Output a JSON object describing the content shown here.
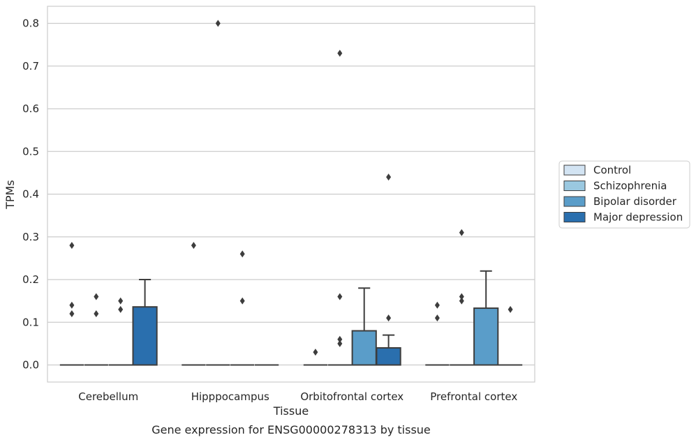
{
  "chart_data": {
    "type": "box",
    "xlabel": "Tissue",
    "ylabel": "TPMs",
    "caption": "Gene expression for ENSG00000278313 by tissue",
    "ylim": [
      -0.04,
      0.84
    ],
    "yticks": [
      "0.0",
      "0.1",
      "0.2",
      "0.3",
      "0.4",
      "0.5",
      "0.6",
      "0.7",
      "0.8"
    ],
    "grid": "horizontal",
    "legend_position": "right",
    "categories": [
      "Cerebellum",
      "Hipppocampus",
      "Orbitofrontal cortex",
      "Prefrontal cortex"
    ],
    "series": [
      {
        "name": "Control",
        "color": "#d3e4f3",
        "boxes": [
          {
            "q1": 0,
            "median": 0,
            "q3": 0,
            "whisker_low": 0,
            "whisker_high": 0,
            "outliers": [
              0.14,
              0.12,
              0.28
            ]
          },
          {
            "q1": 0,
            "median": 0,
            "q3": 0,
            "whisker_low": 0,
            "whisker_high": 0,
            "outliers": [
              0.28
            ]
          },
          {
            "q1": 0,
            "median": 0,
            "q3": 0,
            "whisker_low": 0,
            "whisker_high": 0,
            "outliers": [
              0.03
            ]
          },
          {
            "q1": 0,
            "median": 0,
            "q3": 0,
            "whisker_low": 0,
            "whisker_high": 0,
            "outliers": [
              0.14,
              0.11
            ]
          }
        ]
      },
      {
        "name": "Schizophrenia",
        "color": "#9ac8e0",
        "boxes": [
          {
            "q1": 0,
            "median": 0,
            "q3": 0,
            "whisker_low": 0,
            "whisker_high": 0,
            "outliers": [
              0.16,
              0.12
            ]
          },
          {
            "q1": 0,
            "median": 0,
            "q3": 0,
            "whisker_low": 0,
            "whisker_high": 0,
            "outliers": [
              0.8
            ]
          },
          {
            "q1": 0,
            "median": 0,
            "q3": 0,
            "whisker_low": 0,
            "whisker_high": 0,
            "outliers": [
              0.73,
              0.16,
              0.06,
              0.05
            ]
          },
          {
            "q1": 0,
            "median": 0,
            "q3": 0,
            "whisker_low": 0,
            "whisker_high": 0,
            "outliers": [
              0.31,
              0.16,
              0.15
            ]
          }
        ]
      },
      {
        "name": "Bipolar disorder",
        "color": "#5a9dc9",
        "boxes": [
          {
            "q1": 0,
            "median": 0,
            "q3": 0,
            "whisker_low": 0,
            "whisker_high": 0,
            "outliers": [
              0.15,
              0.13
            ]
          },
          {
            "q1": 0,
            "median": 0,
            "q3": 0,
            "whisker_low": 0,
            "whisker_high": 0,
            "outliers": [
              0.26,
              0.15
            ]
          },
          {
            "q1": 0,
            "median": 0,
            "q3": 0.08,
            "whisker_low": 0,
            "whisker_high": 0.18,
            "outliers": []
          },
          {
            "q1": 0,
            "median": 0,
            "q3": 0.133,
            "whisker_low": 0,
            "whisker_high": 0.22,
            "outliers": []
          }
        ]
      },
      {
        "name": "Major depression",
        "color": "#2a6fae",
        "boxes": [
          {
            "q1": 0,
            "median": 0,
            "q3": 0.136,
            "whisker_low": 0,
            "whisker_high": 0.2,
            "outliers": []
          },
          {
            "q1": 0,
            "median": 0,
            "q3": 0,
            "whisker_low": 0,
            "whisker_high": 0,
            "outliers": []
          },
          {
            "q1": 0,
            "median": 0,
            "q3": 0.04,
            "whisker_low": 0,
            "whisker_high": 0.07,
            "outliers": [
              0.44,
              0.11
            ]
          },
          {
            "q1": 0,
            "median": 0,
            "q3": 0,
            "whisker_low": 0,
            "whisker_high": 0,
            "outliers": [
              0.13
            ]
          }
        ]
      }
    ]
  }
}
